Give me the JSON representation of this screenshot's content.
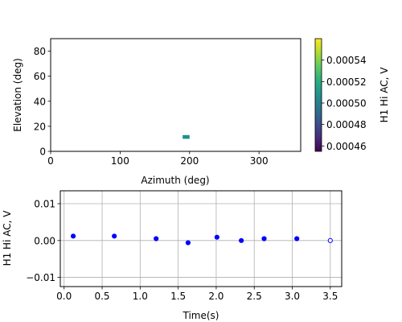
{
  "chart_data": [
    {
      "type": "heatmap",
      "xlabel": "Azimuth (deg)",
      "ylabel": "Elevation (deg)",
      "xlim": [
        0,
        360
      ],
      "ylim": [
        0,
        90
      ],
      "xticks": [
        "0",
        "100",
        "200",
        "300"
      ],
      "yticks": [
        "0",
        "20",
        "40",
        "60",
        "80"
      ],
      "cells": [
        {
          "azimuth_min": 190,
          "azimuth_max": 200,
          "elevation_min": 10,
          "elevation_max": 13,
          "value": 0.0005
        }
      ],
      "colorbar": {
        "label": "H1 Hi AC, V",
        "colormap": "viridis",
        "range": [
          0.000455,
          0.00056
        ],
        "ticks": [
          "0.00046",
          "0.00048",
          "0.00050",
          "0.00052",
          "0.00054"
        ],
        "tick_values": [
          0.00046,
          0.00048,
          0.0005,
          0.00052,
          0.00054
        ]
      },
      "grid": false
    },
    {
      "type": "scatter",
      "xlabel": "Time(s)",
      "ylabel": "H1 Hi AC, V",
      "xlim": [
        -0.05,
        3.65
      ],
      "ylim": [
        -0.0125,
        0.0135
      ],
      "xticks": [
        "0.0",
        "0.5",
        "1.0",
        "1.5",
        "2.0",
        "2.5",
        "3.0",
        "3.5"
      ],
      "yticks": [
        "−0.01",
        "0.00",
        "0.01"
      ],
      "grid": true,
      "color": "#0000ff",
      "series": [
        {
          "x": [
            0.12,
            0.66,
            1.21,
            1.63,
            2.01,
            2.33,
            2.63,
            3.06,
            3.5
          ],
          "y": [
            0.0012,
            0.0012,
            0.0005,
            -0.0006,
            0.0009,
            0.0,
            0.0005,
            0.0005,
            0.0
          ],
          "hollow": [
            false,
            false,
            false,
            false,
            false,
            false,
            false,
            false,
            true
          ]
        }
      ]
    }
  ]
}
